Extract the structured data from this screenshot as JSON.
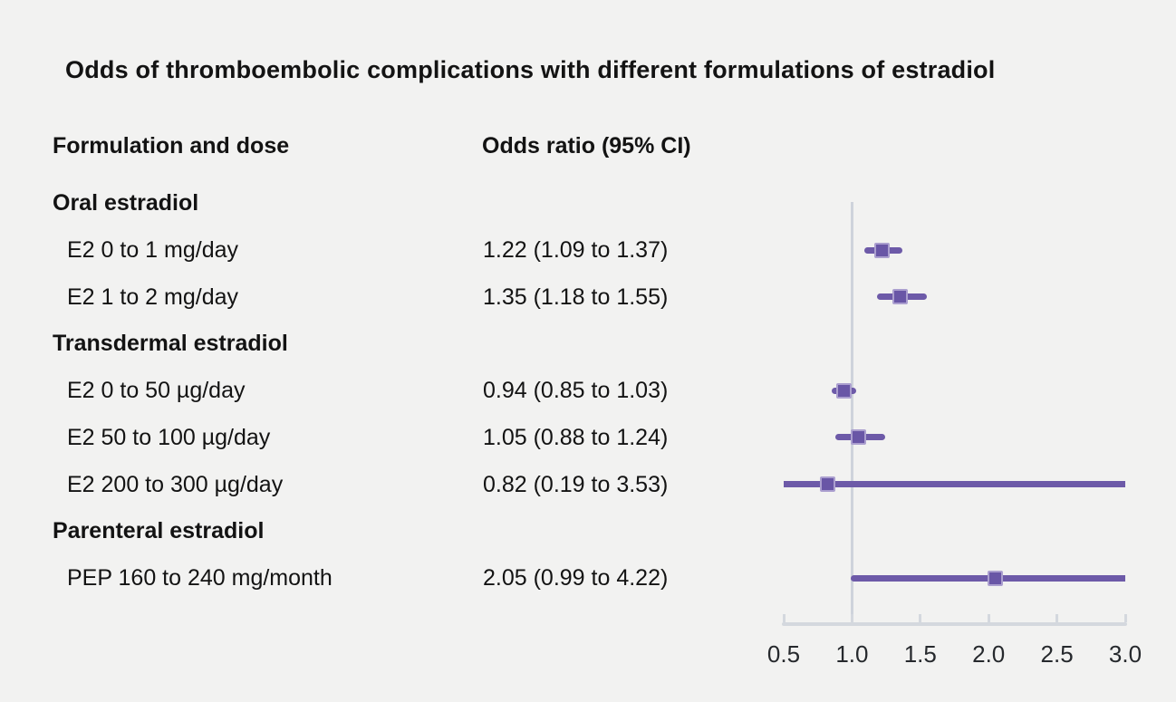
{
  "title": "Odds of thromboembolic complications with different formulations of estradiol",
  "table": {
    "headers": {
      "formulation": "Formulation and dose",
      "odds_ratio": "Odds ratio (95% CI)"
    },
    "rows": [
      {
        "type": "group",
        "label": "Oral estradiol",
        "value": ""
      },
      {
        "type": "item",
        "label": "E2 0 to 1 mg/day",
        "value": "1.22 (1.09 to 1.37)"
      },
      {
        "type": "item",
        "label": "E2 1 to 2 mg/day",
        "value": "1.35 (1.18 to 1.55)"
      },
      {
        "type": "group",
        "label": "Transdermal estradiol",
        "value": ""
      },
      {
        "type": "item",
        "label": "E2 0 to 50 µg/day",
        "value": "0.94 (0.85 to 1.03)"
      },
      {
        "type": "item",
        "label": "E2 50 to 100 µg/day",
        "value": "1.05 (0.88 to 1.24)"
      },
      {
        "type": "item",
        "label": "E2 200 to 300 µg/day",
        "value": "0.82 (0.19 to 3.53)"
      },
      {
        "type": "group",
        "label": "Parenteral estradiol",
        "value": ""
      },
      {
        "type": "item",
        "label": "PEP 160 to 240 mg/month",
        "value": "2.05 (0.99 to 4.22)"
      }
    ]
  },
  "chart_data": {
    "type": "scatter",
    "subtype": "forest_plot",
    "title": "Odds of thromboembolic complications with different formulations of estradiol",
    "xlabel": "Odds ratio",
    "xlim": [
      0.5,
      3.0
    ],
    "reference_line": 1.0,
    "x_ticks": [
      0.5,
      1.0,
      1.5,
      2.0,
      2.5,
      3.0
    ],
    "x_tick_labels": [
      "0.5",
      "1.0",
      "1.5",
      "2.0",
      "2.5",
      "3.0"
    ],
    "grid": false,
    "legend": "none",
    "points": [
      {
        "row": 1,
        "category": "E2 0 to 1 mg/day",
        "estimate": 1.22,
        "ci_low": 1.09,
        "ci_high": 1.37
      },
      {
        "row": 2,
        "category": "E2 1 to 2 mg/day",
        "estimate": 1.35,
        "ci_low": 1.18,
        "ci_high": 1.55
      },
      {
        "row": 4,
        "category": "E2 0 to 50 µg/day",
        "estimate": 0.94,
        "ci_low": 0.85,
        "ci_high": 1.03
      },
      {
        "row": 5,
        "category": "E2 50 to 100 µg/day",
        "estimate": 1.05,
        "ci_low": 0.88,
        "ci_high": 1.24
      },
      {
        "row": 6,
        "category": "E2 200 to 300 µg/day",
        "estimate": 0.82,
        "ci_low": 0.19,
        "ci_high": 3.53
      },
      {
        "row": 8,
        "category": "PEP 160 to 240 mg/month",
        "estimate": 2.05,
        "ci_low": 0.99,
        "ci_high": 4.22
      }
    ],
    "colors": {
      "ci_line": "#6d5aa8",
      "marker_fill": "#6956a6",
      "marker_border": "#ab9fcf",
      "axis": "#d4d8de",
      "reference": "#ced3db",
      "background": "#f2f2f1"
    }
  }
}
